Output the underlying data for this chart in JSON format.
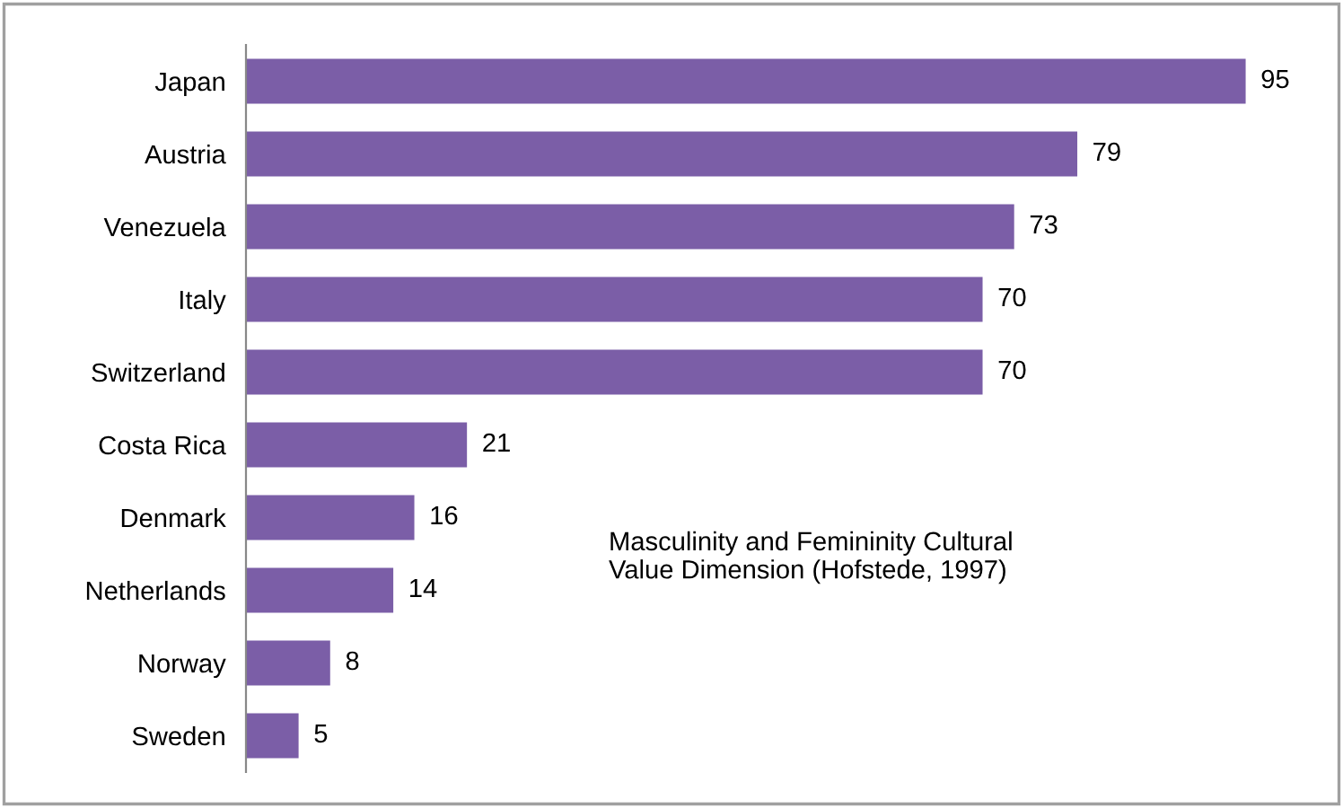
{
  "chart_data": {
    "type": "bar",
    "orientation": "horizontal",
    "categories": [
      "Japan",
      "Austria",
      "Venezuela",
      "Italy",
      "Switzerland",
      "Costa Rica",
      "Denmark",
      "Netherlands",
      "Norway",
      "Sweden"
    ],
    "values": [
      95,
      79,
      73,
      70,
      70,
      21,
      16,
      14,
      8,
      5
    ],
    "color": "#7b5ea7",
    "data_labels": true,
    "grid": false,
    "annotations": [
      "Masculinity and Femininity Cultural\nValue Dimension (Hofstede, 1997)"
    ]
  }
}
